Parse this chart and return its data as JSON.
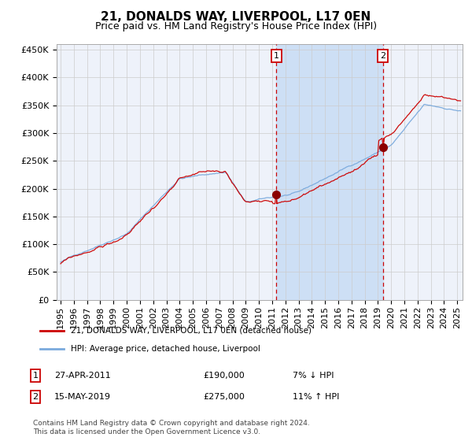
{
  "title": "21, DONALDS WAY, LIVERPOOL, L17 0EN",
  "subtitle": "Price paid vs. HM Land Registry's House Price Index (HPI)",
  "legend_label_red": "21, DONALDS WAY, LIVERPOOL, L17 0EN (detached house)",
  "legend_label_blue": "HPI: Average price, detached house, Liverpool",
  "annotation1_date": "27-APR-2011",
  "annotation1_price": "£190,000",
  "annotation1_pct": "7% ↓ HPI",
  "annotation1_year": 2011.32,
  "annotation1_value": 190000,
  "annotation2_date": "15-MAY-2019",
  "annotation2_price": "£275,000",
  "annotation2_pct": "11% ↑ HPI",
  "annotation2_year": 2019.37,
  "annotation2_value": 275000,
  "ylim": [
    0,
    460000
  ],
  "yticks": [
    0,
    50000,
    100000,
    150000,
    200000,
    250000,
    300000,
    350000,
    400000,
    450000
  ],
  "ytick_labels": [
    "£0",
    "£50K",
    "£100K",
    "£150K",
    "£200K",
    "£250K",
    "£300K",
    "£350K",
    "£400K",
    "£450K"
  ],
  "background_color": "#ffffff",
  "plot_bg_color": "#eef2fa",
  "shade_color": "#cddff5",
  "grid_color": "#cccccc",
  "red_color": "#cc0000",
  "blue_color": "#7aaadd",
  "footer": "Contains HM Land Registry data © Crown copyright and database right 2024.\nThis data is licensed under the Open Government Licence v3.0.",
  "title_fontsize": 11,
  "subtitle_fontsize": 9,
  "tick_fontsize": 8
}
